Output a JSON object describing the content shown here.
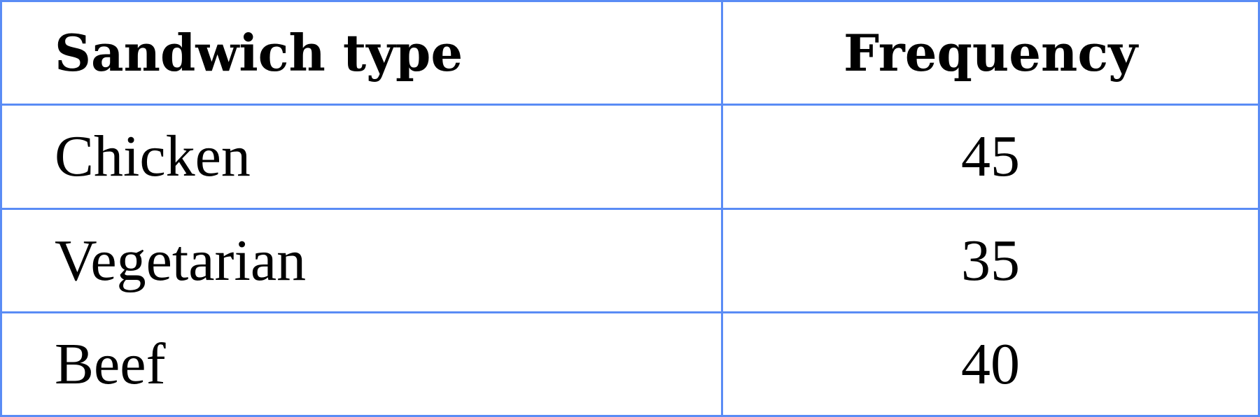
{
  "table": {
    "headers": [
      "Sandwich type",
      "Frequency"
    ],
    "rows": [
      {
        "type": "Chicken",
        "frequency": "45"
      },
      {
        "type": "Vegetarian",
        "frequency": "35"
      },
      {
        "type": "Beef",
        "frequency": "40"
      }
    ]
  },
  "colors": {
    "border": "#5a8cf5"
  }
}
